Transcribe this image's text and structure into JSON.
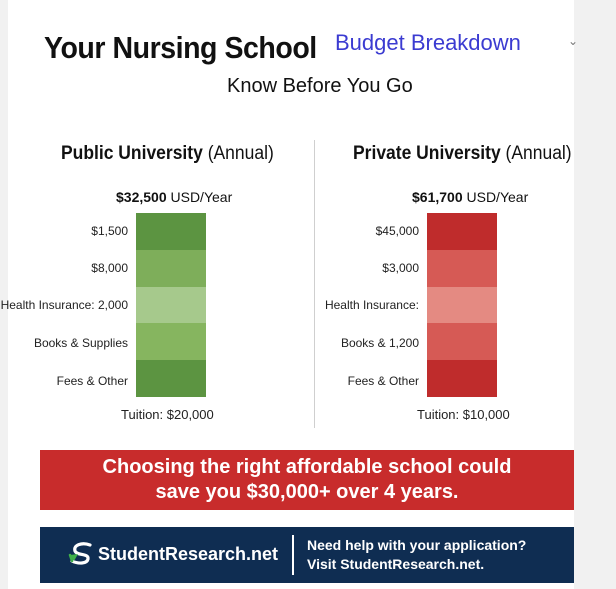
{
  "header": {
    "title": "Your Nursing School",
    "title_accent": "Budget Breakdown",
    "subtitle": "Know Before You Go"
  },
  "chart_data": [
    {
      "type": "bar",
      "title_bold": "Public University",
      "title_rest": "(Annual)",
      "total_value": "$32,500",
      "total_unit": "USD/Year",
      "segments": [
        {
          "label": "$1,500",
          "color": "#5c9441"
        },
        {
          "label": "$8,000",
          "color": "#7eae5a"
        },
        {
          "label": "Health Insurance: 2,000",
          "color": "#a6c98c"
        },
        {
          "label": "Books & Supplies",
          "color": "#86b55f"
        },
        {
          "label": "Fees & Other",
          "color": "#5c9441"
        }
      ],
      "footer_label": "Tuition: $20,000"
    },
    {
      "type": "bar",
      "title_bold": "Private University",
      "title_rest": "(Annual)",
      "total_value": "$61,700",
      "total_unit": "USD/Year",
      "segments": [
        {
          "label": "$45,000",
          "color": "#bf2c2c"
        },
        {
          "label": "$3,000",
          "color": "#d65a55"
        },
        {
          "label": "Health Insurance:",
          "color": "#e48a82"
        },
        {
          "label": "Books & 1,200",
          "color": "#d65a55"
        },
        {
          "label": "Fees & Other",
          "color": "#bf2c2c"
        }
      ],
      "footer_label": "Tuition: $10,000"
    }
  ],
  "banner": {
    "line1": "Choosing the right affordable school could",
    "line2": "save you $30,000+ over 4 years."
  },
  "footer": {
    "brand": "StudentResearch.net",
    "logo_icon": "s-arrow-icon",
    "cta_line1": "Need help with your application?",
    "cta_line2": "Visit StudentResearch.net."
  },
  "colors": {
    "banner_red": "#c82c2c",
    "footer_navy": "#0f2d52",
    "accent_blue": "#3b3bd1",
    "logo_green": "#3fb14a"
  }
}
